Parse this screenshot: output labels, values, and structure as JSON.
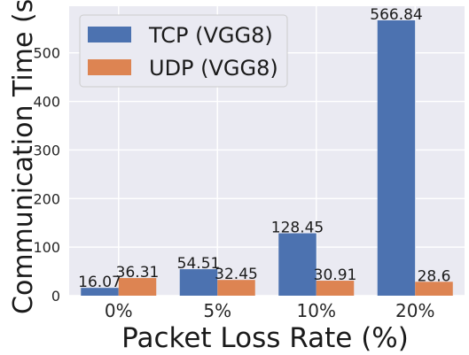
{
  "chart_data": {
    "type": "bar",
    "categories": [
      "0%",
      "5%",
      "10%",
      "20%"
    ],
    "series": [
      {
        "name": "TCP (VGG8)",
        "values": [
          16.07,
          54.51,
          128.45,
          566.84
        ],
        "color": "#4c72b0"
      },
      {
        "name": "UDP (VGG8)",
        "values": [
          36.31,
          32.45,
          30.91,
          28.6
        ],
        "color": "#dd8452"
      }
    ],
    "data_labels": [
      [
        "16.07",
        "54.51",
        "128.45",
        "566.84"
      ],
      [
        "36.31",
        "32.45",
        "30.91",
        "28.6"
      ]
    ],
    "title": "",
    "xlabel": "Packet Loss Rate (%)",
    "ylabel": "Communication Time (s)",
    "ylim": [
      0,
      596
    ],
    "yticks": [
      0,
      100,
      200,
      300,
      400,
      500
    ],
    "grid": true,
    "legend_position": "top-left",
    "background_color": "#eaeaf2",
    "grid_color": "#ffffff"
  }
}
